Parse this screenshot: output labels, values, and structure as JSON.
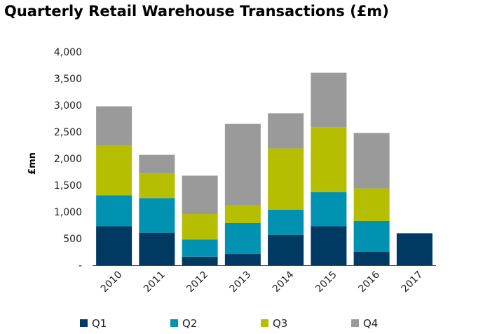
{
  "chart_data": {
    "type": "bar",
    "stacked": true,
    "title": "Quarterly Retail Warehouse Transactions (£m)",
    "xlabel": "",
    "ylabel": "£mn",
    "ylim": [
      0,
      4000
    ],
    "y_ticks": [
      {
        "value": 0,
        "label": "-"
      },
      {
        "value": 500,
        "label": "500"
      },
      {
        "value": 1000,
        "label": "1,000"
      },
      {
        "value": 1500,
        "label": "1,500"
      },
      {
        "value": 2000,
        "label": "2,000"
      },
      {
        "value": 2500,
        "label": "2,500"
      },
      {
        "value": 3000,
        "label": "3,000"
      },
      {
        "value": 3500,
        "label": "3,500"
      },
      {
        "value": 4000,
        "label": "4,000"
      }
    ],
    "categories": [
      "2010",
      "2011",
      "2012",
      "2013",
      "2014",
      "2015",
      "2016",
      "2017"
    ],
    "series": [
      {
        "name": "Q1",
        "color": "#003a63",
        "values": [
          730,
          610,
          160,
          210,
          570,
          730,
          250,
          600
        ]
      },
      {
        "name": "Q2",
        "color": "#0092b0",
        "values": [
          580,
          650,
          320,
          580,
          470,
          640,
          580,
          0
        ]
      },
      {
        "name": "Q3",
        "color": "#b5be00",
        "values": [
          940,
          460,
          480,
          330,
          1150,
          1220,
          610,
          0
        ]
      },
      {
        "name": "Q4",
        "color": "#9a9a9a",
        "values": [
          730,
          350,
          720,
          1530,
          660,
          1020,
          1040,
          0
        ]
      }
    ],
    "legend_position": "bottom"
  }
}
